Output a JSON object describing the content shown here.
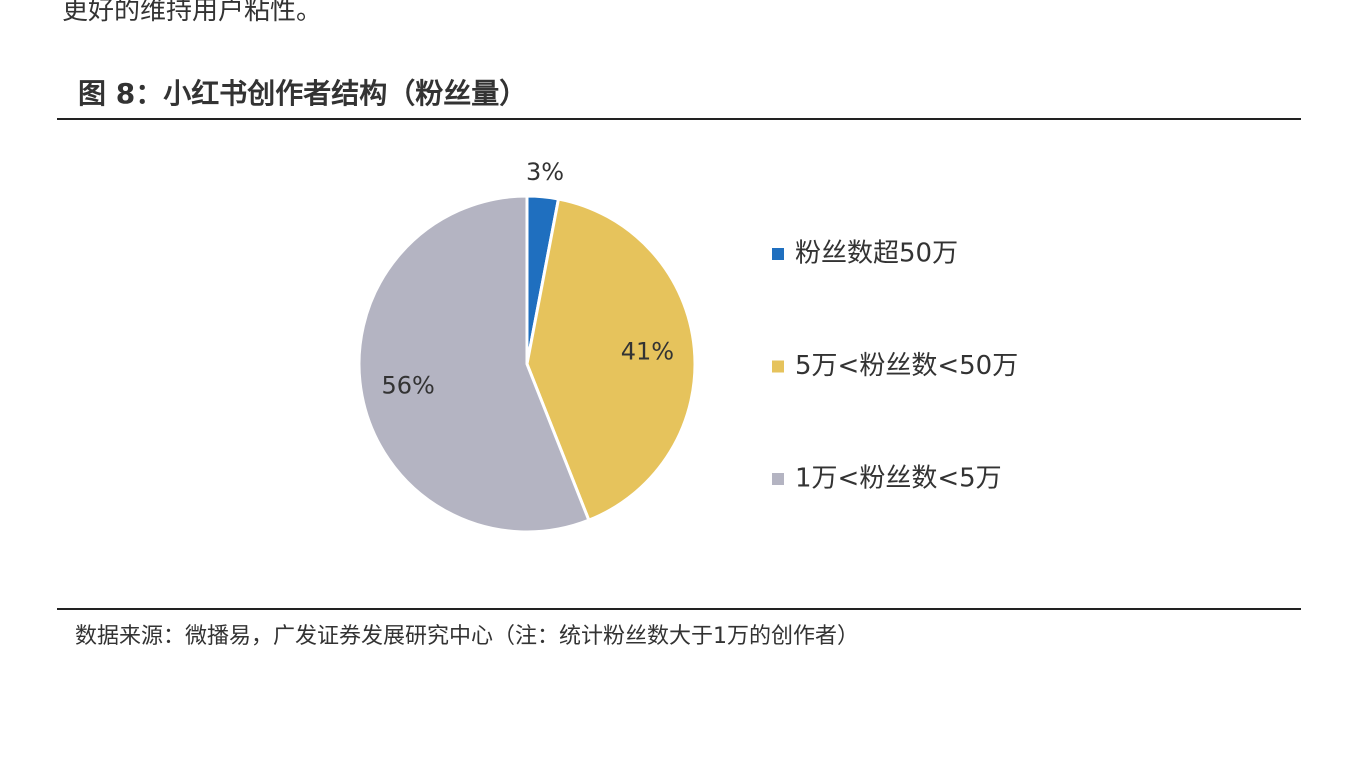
{
  "intro_text": "更好的维持用户粘性。",
  "chart_data": {
    "type": "pie",
    "title": "图 8：小红书创作者结构（粉丝量）",
    "categories": [
      "粉丝数超50万",
      "5万<粉丝数<50万",
      "1万<粉丝数<5万"
    ],
    "values": [
      3,
      41,
      56
    ],
    "value_labels": [
      "3%",
      "41%",
      "56%"
    ],
    "colors": [
      "#1f6fbf",
      "#e6c35c",
      "#b4b4c2"
    ],
    "source": "数据来源：微播易，广发证券发展研究中心（注：统计粉丝数大于1万的创作者）"
  }
}
